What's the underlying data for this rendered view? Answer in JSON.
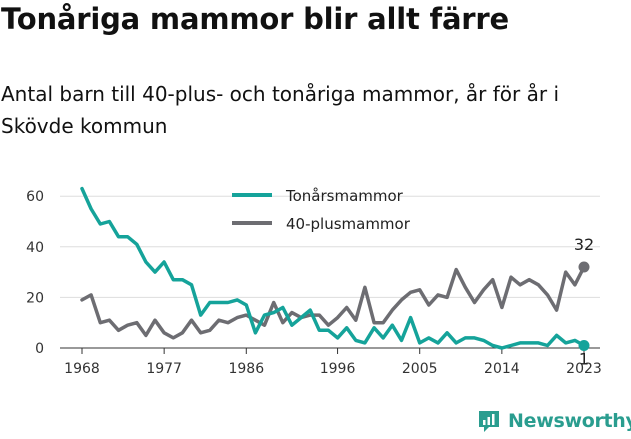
{
  "title": "Tonåriga mammor blir allt färre",
  "subtitle": "Antal barn till 40-plus- och tonåriga mammor, år för år i Skövde kommun",
  "brand": "Newsworthy",
  "colors": {
    "teen": "#15a39a",
    "forty": "#6d6d72",
    "grid": "#dddddd",
    "brand": "#2a9d8f"
  },
  "chart_data": {
    "type": "line",
    "x": [
      1968,
      1969,
      1970,
      1971,
      1972,
      1973,
      1974,
      1975,
      1976,
      1977,
      1978,
      1979,
      1980,
      1981,
      1982,
      1983,
      1984,
      1985,
      1986,
      1987,
      1988,
      1989,
      1990,
      1991,
      1992,
      1993,
      1994,
      1995,
      1996,
      1997,
      1998,
      1999,
      2000,
      2001,
      2002,
      2003,
      2004,
      2005,
      2006,
      2007,
      2008,
      2009,
      2010,
      2011,
      2012,
      2013,
      2014,
      2015,
      2016,
      2017,
      2018,
      2019,
      2020,
      2021,
      2022,
      2023
    ],
    "series": [
      {
        "name": "Tonårsmammor",
        "values": [
          63,
          55,
          49,
          50,
          44,
          44,
          41,
          34,
          30,
          34,
          27,
          27,
          25,
          13,
          18,
          18,
          18,
          19,
          17,
          6,
          13,
          14,
          16,
          9,
          12,
          15,
          7,
          7,
          4,
          8,
          3,
          2,
          8,
          4,
          9,
          3,
          12,
          2,
          4,
          2,
          6,
          2,
          4,
          4,
          3,
          1,
          0,
          1,
          2,
          2,
          2,
          1,
          5,
          2,
          3,
          1
        ]
      },
      {
        "name": "40-plusmammor",
        "values": [
          19,
          21,
          10,
          11,
          7,
          9,
          10,
          5,
          11,
          6,
          4,
          6,
          11,
          6,
          7,
          11,
          10,
          12,
          13,
          11,
          9,
          18,
          10,
          14,
          12,
          13,
          13,
          9,
          12,
          16,
          11,
          24,
          10,
          10,
          15,
          19,
          22,
          23,
          17,
          21,
          20,
          31,
          24,
          18,
          23,
          27,
          16,
          28,
          25,
          27,
          25,
          21,
          15,
          30,
          25,
          32
        ]
      }
    ],
    "ylim": [
      0,
      65
    ],
    "yticks": [
      0,
      20,
      40,
      60
    ],
    "xticks": [
      "1968",
      "1977",
      "1986",
      "1996",
      "2005",
      "2014",
      "2023"
    ],
    "end_labels": {
      "forty": "32",
      "teen": "1"
    },
    "legend_placement": "top-center",
    "grid": "horizontal"
  }
}
